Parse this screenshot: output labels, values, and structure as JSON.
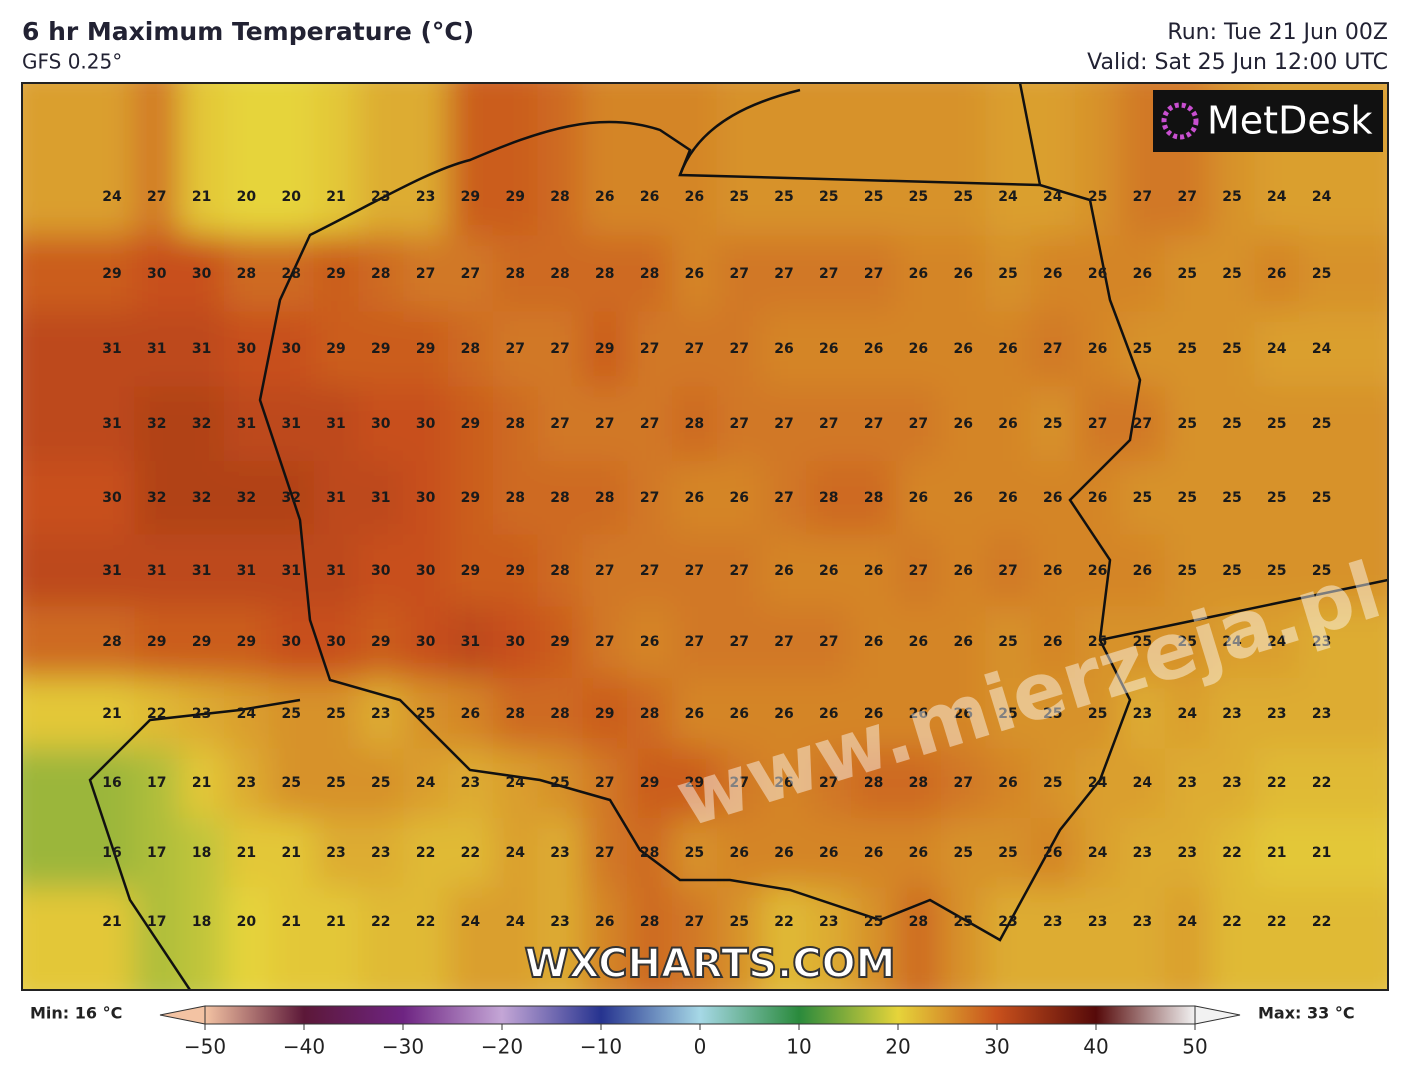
{
  "header": {
    "title": "6 hr Maximum Temperature (°C)",
    "subtitle": "GFS 0.25°",
    "run": "Run: Tue 21 Jun 00Z",
    "valid": "Valid: Sat 25 Jun 12:00 UTC"
  },
  "logo": "MetDesk",
  "brand": "WXCHARTS.COM",
  "watermark": "www.mierzeja.pl",
  "grid": {
    "rows": [
      [
        24,
        27,
        21,
        20,
        20,
        21,
        23,
        23,
        29,
        29,
        28,
        26,
        26,
        26,
        25,
        25,
        25,
        25,
        25,
        25,
        24,
        24,
        25,
        27,
        27,
        25,
        24,
        24
      ],
      [
        29,
        30,
        30,
        28,
        28,
        29,
        28,
        27,
        27,
        28,
        28,
        28,
        28,
        26,
        27,
        27,
        27,
        27,
        26,
        26,
        25,
        26,
        26,
        26,
        25,
        25,
        26,
        25
      ],
      [
        31,
        31,
        31,
        30,
        30,
        29,
        29,
        29,
        28,
        27,
        27,
        29,
        27,
        27,
        27,
        26,
        26,
        26,
        26,
        26,
        26,
        27,
        26,
        25,
        25,
        25,
        24,
        24
      ],
      [
        31,
        32,
        32,
        31,
        31,
        31,
        30,
        30,
        29,
        28,
        27,
        27,
        27,
        28,
        27,
        27,
        27,
        27,
        27,
        26,
        26,
        25,
        27,
        27,
        25,
        25,
        25,
        25
      ],
      [
        30,
        32,
        32,
        32,
        32,
        31,
        31,
        30,
        29,
        28,
        28,
        28,
        27,
        26,
        26,
        27,
        28,
        28,
        26,
        26,
        26,
        26,
        26,
        25,
        25,
        25,
        25,
        25
      ],
      [
        31,
        31,
        31,
        31,
        31,
        31,
        30,
        30,
        29,
        29,
        28,
        27,
        27,
        27,
        27,
        26,
        26,
        26,
        27,
        26,
        27,
        26,
        26,
        26,
        25,
        25,
        25,
        25
      ],
      [
        28,
        29,
        29,
        29,
        30,
        30,
        29,
        30,
        31,
        30,
        29,
        27,
        26,
        27,
        27,
        27,
        27,
        26,
        26,
        26,
        25,
        26,
        25,
        25,
        25,
        24,
        24,
        23
      ],
      [
        21,
        22,
        23,
        24,
        25,
        25,
        23,
        25,
        26,
        28,
        28,
        29,
        28,
        26,
        26,
        26,
        26,
        26,
        26,
        26,
        25,
        25,
        25,
        23,
        24,
        23,
        23,
        23
      ],
      [
        16,
        17,
        21,
        23,
        25,
        25,
        25,
        24,
        23,
        24,
        25,
        27,
        29,
        29,
        27,
        26,
        27,
        28,
        28,
        27,
        26,
        25,
        24,
        24,
        23,
        23,
        22,
        22
      ],
      [
        16,
        17,
        18,
        21,
        21,
        23,
        23,
        22,
        22,
        24,
        23,
        27,
        28,
        25,
        26,
        26,
        26,
        26,
        26,
        25,
        25,
        26,
        24,
        23,
        23,
        22,
        21,
        21
      ],
      [
        21,
        17,
        18,
        20,
        21,
        21,
        22,
        22,
        24,
        24,
        23,
        26,
        28,
        27,
        25,
        22,
        23,
        25,
        28,
        25,
        23,
        23,
        23,
        23,
        24,
        22,
        22,
        22
      ]
    ]
  },
  "colorbar": {
    "lim": [
      -50,
      50
    ],
    "ticks": [
      {
        "value": -50,
        "label": "−50"
      },
      {
        "value": -40,
        "label": "−40"
      },
      {
        "value": -30,
        "label": "−30"
      },
      {
        "value": -20,
        "label": "−20"
      },
      {
        "value": -10,
        "label": "−10"
      },
      0,
      10,
      20,
      30,
      40,
      50
    ],
    "colors": [
      "#f3c3a3",
      "#5c1838",
      "#6e2482",
      "#c4a6d6",
      "#26338f",
      "#a6d8e6",
      "#2a8a3c",
      "#e6d43a",
      "#c8501c",
      "#560a0a",
      "#f2f2f2"
    ],
    "min_label": "Min: 16 °C",
    "max_label": "Max: 33 °C"
  }
}
